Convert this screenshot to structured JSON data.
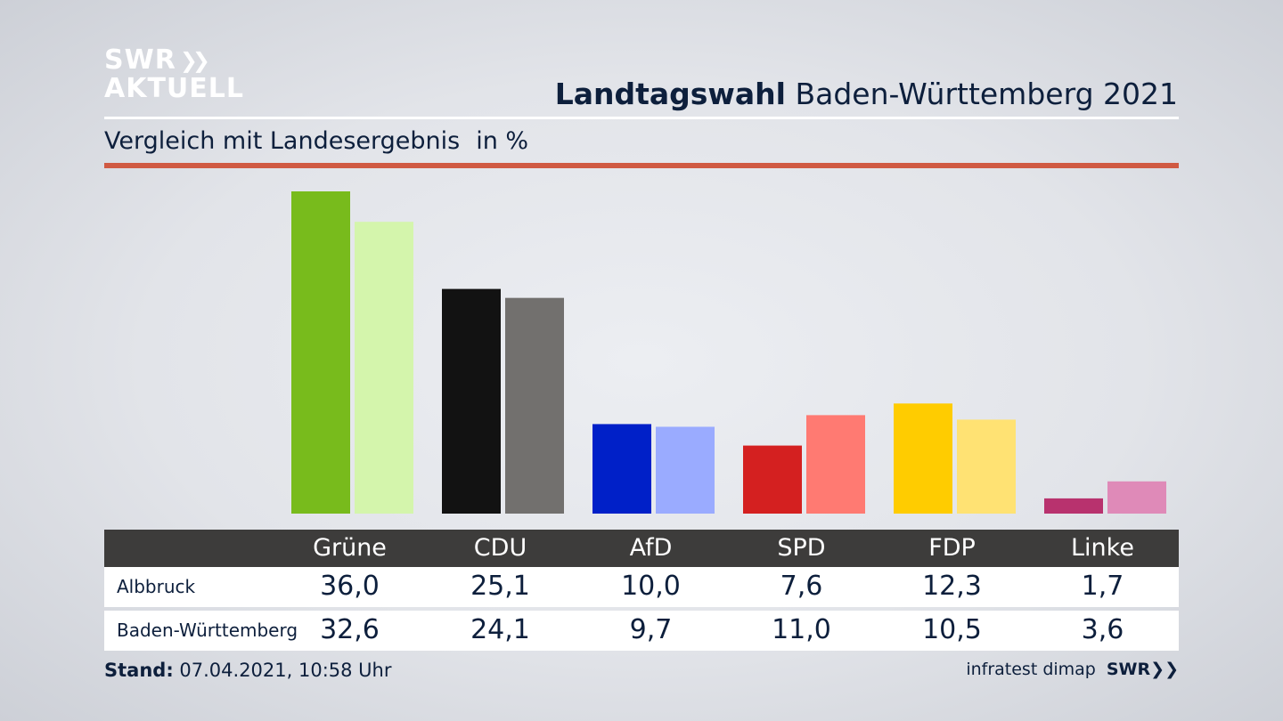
{
  "brand": {
    "logo_line1": "SWR",
    "logo_line2": "AKTUELL",
    "logo_chevrons": "»",
    "colors": {
      "accent_red": "#d05a43",
      "header_bg": "#3d3c3b",
      "text": "#0d1f3c"
    }
  },
  "header": {
    "title_bold": "Landtagswahl",
    "title_rest": " Baden-Württemberg 2021",
    "subtitle": "Vergleich mit Landesergebnis",
    "unit": "in %"
  },
  "chart_data": {
    "type": "bar",
    "categories": [
      "Grüne",
      "CDU",
      "AfD",
      "SPD",
      "FDP",
      "Linke"
    ],
    "series": [
      {
        "name": "Albbruck",
        "values": [
          36.0,
          25.1,
          10.0,
          7.6,
          12.3,
          1.7
        ],
        "labels": [
          "36,0",
          "25,1",
          "10,0",
          "7,6",
          "12,3",
          "1,7"
        ]
      },
      {
        "name": "Baden-Württemberg",
        "values": [
          32.6,
          24.1,
          9.7,
          11.0,
          10.5,
          3.6
        ],
        "labels": [
          "32,6",
          "24,1",
          "9,7",
          "11,0",
          "10,5",
          "3,6"
        ]
      }
    ],
    "colors_primary": [
      "#78bb1c",
      "#121212",
      "#0020c8",
      "#d42020",
      "#ffcc00",
      "#b8326e"
    ],
    "colors_secondary": [
      "#d4f5ac",
      "#72706e",
      "#9aabff",
      "#ff7a72",
      "#ffe273",
      "#df8ab8"
    ],
    "ylim": [
      0,
      36
    ]
  },
  "footer": {
    "stand_label": "Stand:",
    "stand_value": " 07.04.2021, 10:58 Uhr",
    "source": "infratest dimap",
    "source_logo": "SWR"
  }
}
